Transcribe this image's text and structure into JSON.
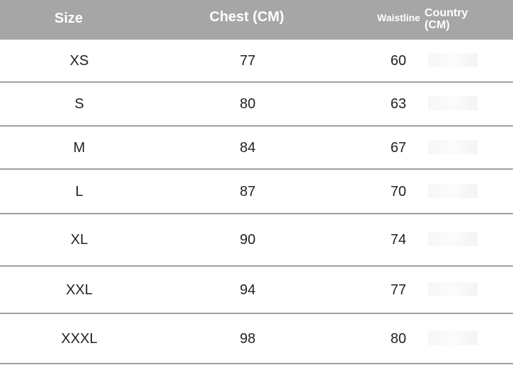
{
  "header": {
    "size": "Size",
    "chest": "Chest (CM)",
    "waist": "Waistline",
    "country": "Country (CM)"
  },
  "rows": [
    {
      "size": "XS",
      "chest": "77",
      "waist": "60"
    },
    {
      "size": "S",
      "chest": "80",
      "waist": "63"
    },
    {
      "size": "M",
      "chest": "84",
      "waist": "67"
    },
    {
      "size": "L",
      "chest": "87",
      "waist": "70"
    },
    {
      "size": "XL",
      "chest": "90",
      "waist": "74"
    },
    {
      "size": "XXL",
      "chest": "94",
      "waist": "77"
    },
    {
      "size": "XXXL",
      "chest": "98",
      "waist": "80"
    }
  ],
  "colors": {
    "header_bg": "#a6a6a6",
    "header_text": "#ffffff",
    "border": "#a0a0a0"
  }
}
